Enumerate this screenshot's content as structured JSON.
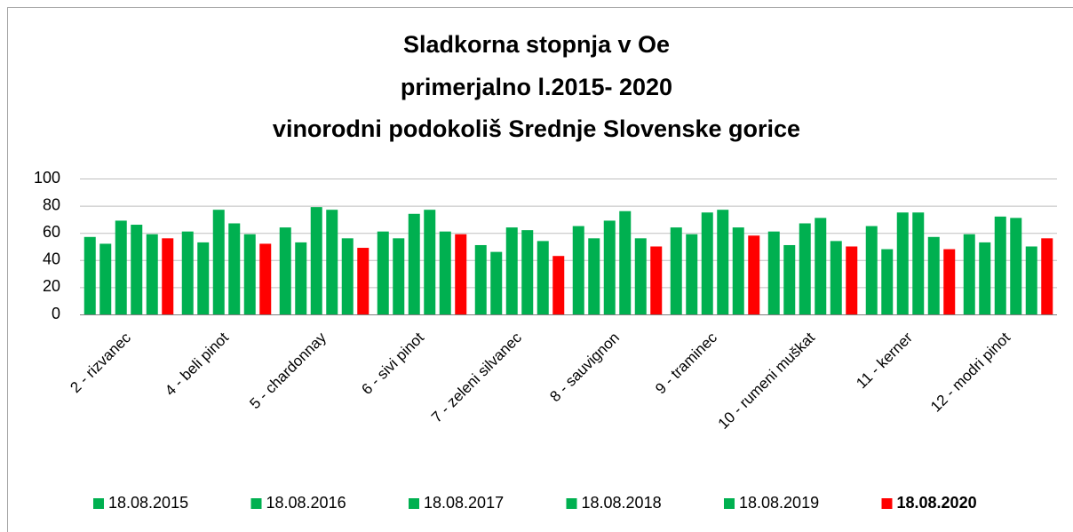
{
  "chart_data": {
    "type": "bar",
    "title": [
      "Sladkorna stopnja v Oe",
      "primerjalno l.2015- 2020",
      "vinorodni podokoliš Srednje Slovenske gorice"
    ],
    "categories": [
      "2 - rizvanec",
      "4 - beli pinot",
      "5 - chardonnay",
      "6 - sivi pinot",
      "7 - zeleni silvanec",
      "8 - sauvignon",
      "9 - traminec",
      "10 - rumeni muškat",
      "11 - kerner",
      "12 - modri pinot"
    ],
    "series": [
      {
        "name": "18.08.2015",
        "color": "#00b050",
        "values": [
          57,
          61,
          64,
          61,
          51,
          65,
          64,
          61,
          65,
          59
        ]
      },
      {
        "name": "18.08.2016",
        "color": "#00b050",
        "values": [
          52,
          53,
          53,
          56,
          46,
          56,
          59,
          51,
          48,
          53
        ]
      },
      {
        "name": "18.08.2017",
        "color": "#00b050",
        "values": [
          69,
          77,
          79,
          74,
          64,
          69,
          75,
          67,
          75,
          72
        ]
      },
      {
        "name": "18.08.2018",
        "color": "#00b050",
        "values": [
          66,
          67,
          77,
          77,
          62,
          76,
          77,
          71,
          75,
          71
        ]
      },
      {
        "name": "18.08.2019",
        "color": "#00b050",
        "values": [
          59,
          59,
          56,
          61,
          54,
          56,
          64,
          54,
          57,
          50
        ]
      },
      {
        "name": "18.08.2020",
        "color": "#ff0000",
        "bold": true,
        "values": [
          56,
          52,
          49,
          59,
          43,
          50,
          58,
          50,
          48,
          56
        ]
      }
    ],
    "ylim": [
      0,
      100
    ],
    "yticks": [
      0,
      20,
      40,
      60,
      80,
      100
    ],
    "grid": true,
    "legend": "bottom"
  }
}
